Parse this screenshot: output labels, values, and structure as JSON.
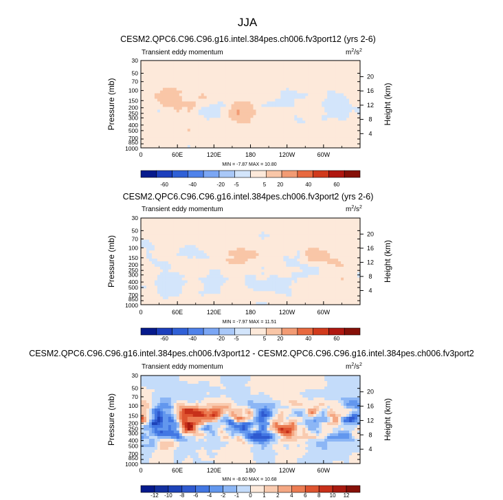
{
  "page_title": "JJA",
  "chart_data": [
    {
      "type": "heatmap",
      "title": "CESM2.QPC6.C96.C96.g16.intel.384pes.ch006.fv3port12 (yrs 2-6)",
      "variable_label": "Transient eddy momentum",
      "units_base": "m",
      "units_exp1": "2",
      "units_mid": "/s",
      "units_exp2": "2",
      "ylabel": "Pressure (mb)",
      "y2label": "Height (km)",
      "x_ticks": [
        "0",
        "60E",
        "120E",
        "180",
        "120W",
        "60W"
      ],
      "x_tick_values": [
        0,
        60,
        120,
        180,
        240,
        300
      ],
      "x_range": [
        0,
        360
      ],
      "y_ticks": [
        "30",
        "50",
        "70",
        "100",
        "150",
        "200",
        "250",
        "300",
        "400",
        "500",
        "700",
        "850",
        "1000"
      ],
      "y_tick_values": [
        30,
        50,
        70,
        100,
        150,
        200,
        250,
        300,
        400,
        500,
        700,
        850,
        1000
      ],
      "y_range": [
        30,
        1000
      ],
      "y2_ticks": [
        "20",
        "16",
        "12",
        "8",
        "4"
      ],
      "y2_tick_values": [
        20,
        16,
        12,
        8,
        4
      ],
      "stats": "MIN = -7.87  MAX = 10.80",
      "min": -7.87,
      "max": 10.8,
      "colorbar_labels": [
        "-60",
        "-40",
        "-20",
        "-5",
        "5",
        "20",
        "40",
        "60"
      ],
      "colorbar_colors": [
        "#061a8c",
        "#1d3fbd",
        "#3060d6",
        "#4f82ea",
        "#7ba6f4",
        "#a9c8f8",
        "#d3e5fb",
        "#fde9da",
        "#f9c6a7",
        "#f29b74",
        "#e8693f",
        "#d13a1c",
        "#b01710",
        "#861008"
      ]
    },
    {
      "type": "heatmap",
      "title": "CESM2.QPC6.C96.C96.g16.intel.384pes.ch006.fv3port2 (yrs 2-6)",
      "variable_label": "Transient eddy momentum",
      "units_base": "m",
      "units_exp1": "2",
      "units_mid": "/s",
      "units_exp2": "2",
      "ylabel": "Pressure (mb)",
      "y2label": "Height (km)",
      "x_ticks": [
        "0",
        "60E",
        "120E",
        "180",
        "120W",
        "60W"
      ],
      "x_tick_values": [
        0,
        60,
        120,
        180,
        240,
        300
      ],
      "x_range": [
        0,
        360
      ],
      "y_ticks": [
        "30",
        "50",
        "70",
        "100",
        "150",
        "200",
        "250",
        "300",
        "400",
        "500",
        "700",
        "850",
        "1000"
      ],
      "y_tick_values": [
        30,
        50,
        70,
        100,
        150,
        200,
        250,
        300,
        400,
        500,
        700,
        850,
        1000
      ],
      "y_range": [
        30,
        1000
      ],
      "y2_ticks": [
        "20",
        "16",
        "12",
        "8",
        "4"
      ],
      "y2_tick_values": [
        20,
        16,
        12,
        8,
        4
      ],
      "stats": "MIN = -7.97  MAX = 11.51",
      "min": -7.97,
      "max": 11.51,
      "colorbar_labels": [
        "-60",
        "-40",
        "-20",
        "-5",
        "5",
        "20",
        "40",
        "60"
      ],
      "colorbar_colors": [
        "#061a8c",
        "#1d3fbd",
        "#3060d6",
        "#4f82ea",
        "#7ba6f4",
        "#a9c8f8",
        "#d3e5fb",
        "#fde9da",
        "#f9c6a7",
        "#f29b74",
        "#e8693f",
        "#d13a1c",
        "#b01710",
        "#861008"
      ]
    },
    {
      "type": "heatmap",
      "title": "CESM2.QPC6.C96.C96.g16.intel.384pes.ch006.fv3port12 - CESM2.QPC6.C96.C96.g16.intel.384pes.ch006.fv3port2",
      "variable_label": "Transient eddy momentum",
      "units_base": "m",
      "units_exp1": "2",
      "units_mid": "/s",
      "units_exp2": "2",
      "ylabel": "Pressure (mb)",
      "y2label": "Height (km)",
      "x_ticks": [
        "0",
        "60E",
        "120E",
        "180",
        "120W",
        "60W"
      ],
      "x_tick_values": [
        0,
        60,
        120,
        180,
        240,
        300
      ],
      "x_range": [
        0,
        360
      ],
      "y_ticks": [
        "30",
        "50",
        "70",
        "100",
        "150",
        "200",
        "250",
        "300",
        "400",
        "500",
        "700",
        "850",
        "1000"
      ],
      "y_tick_values": [
        30,
        50,
        70,
        100,
        150,
        200,
        250,
        300,
        400,
        500,
        700,
        850,
        1000
      ],
      "y_range": [
        30,
        1000
      ],
      "y2_ticks": [
        "20",
        "16",
        "12",
        "8",
        "4"
      ],
      "y2_tick_values": [
        20,
        16,
        12,
        8,
        4
      ],
      "stats": "MIN = -8.60  MAX = 10.68",
      "min": -8.6,
      "max": 10.68,
      "colorbar_labels": [
        "-12",
        "-10",
        "-8",
        "-6",
        "-4",
        "-2",
        "-1",
        "0",
        "1",
        "2",
        "4",
        "6",
        "8",
        "10",
        "12"
      ],
      "colorbar_colors": [
        "#061a8c",
        "#13309f",
        "#1d43b8",
        "#2f5ad0",
        "#4277e3",
        "#6297ee",
        "#8cb6f5",
        "#c4dcfa",
        "#fde9da",
        "#f9cbb0",
        "#f4a783",
        "#ec7c52",
        "#de5430",
        "#c7301a",
        "#a81a10",
        "#861008"
      ]
    }
  ]
}
